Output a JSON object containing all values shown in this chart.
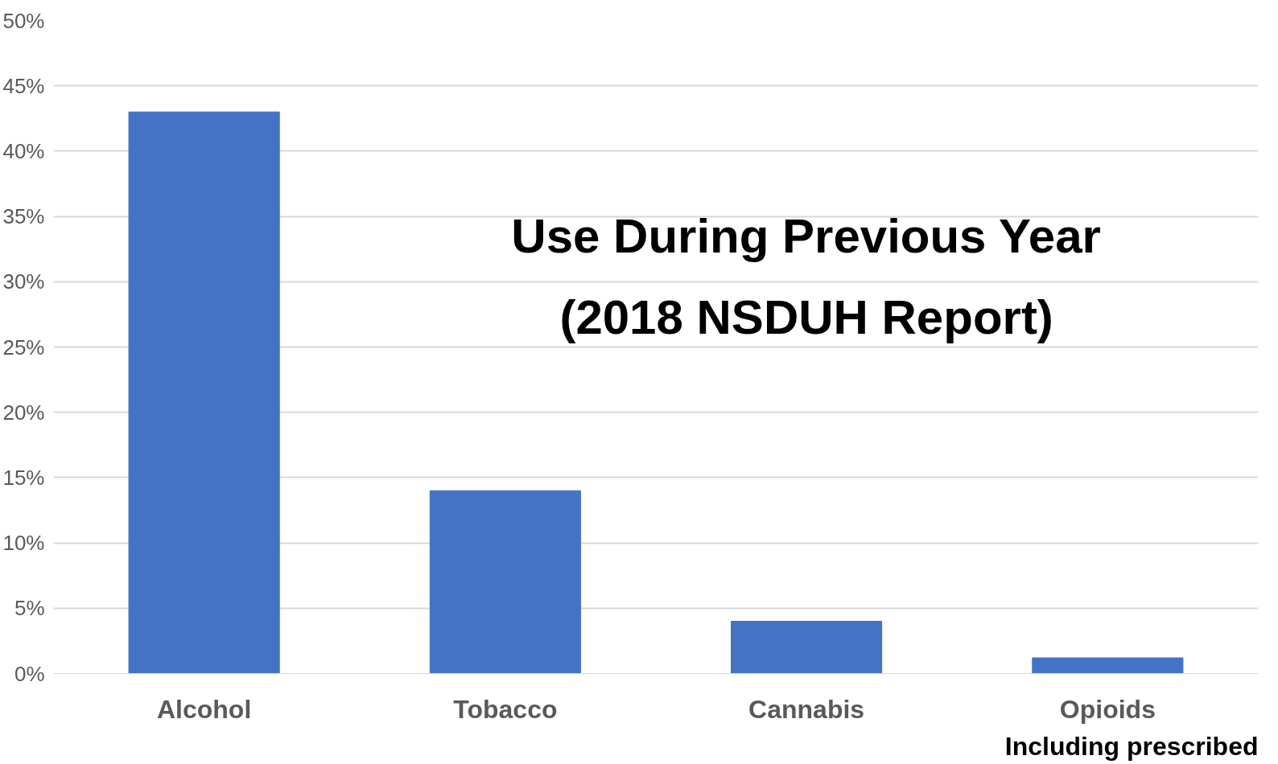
{
  "chart_data": {
    "type": "bar",
    "title": "Use During Previous Year\n(2018 NSDUH Report)",
    "categories": [
      "Alcohol",
      "Tobacco",
      "Cannabis",
      "Opioids"
    ],
    "values": [
      43,
      14,
      4,
      1.2
    ],
    "color": "#4472c4",
    "ylim": [
      0,
      50
    ],
    "yticks": [
      {
        "value": 0,
        "label": "0%"
      },
      {
        "value": 5,
        "label": "5%"
      },
      {
        "value": 10,
        "label": "10%"
      },
      {
        "value": 15,
        "label": "15%"
      },
      {
        "value": 20,
        "label": "20%"
      },
      {
        "value": 25,
        "label": "25%"
      },
      {
        "value": 30,
        "label": "30%"
      },
      {
        "value": 35,
        "label": "35%"
      },
      {
        "value": 40,
        "label": "40%"
      },
      {
        "value": 45,
        "label": "45%"
      },
      {
        "value": 50,
        "label": "50%"
      }
    ],
    "grid": "y",
    "annotations": [
      "Including prescribed"
    ]
  }
}
